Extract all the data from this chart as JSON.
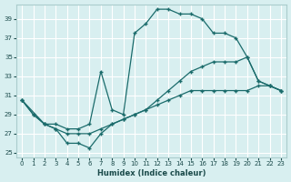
{
  "xlabel": "Humidex (Indice chaleur)",
  "bg_color": "#d8eff0",
  "grid_color": "#c8e4e6",
  "line_color": "#1a6b6b",
  "xlim": [
    -0.5,
    23.5
  ],
  "ylim": [
    24.5,
    40.5
  ],
  "yticks": [
    25,
    27,
    29,
    31,
    33,
    35,
    37,
    39
  ],
  "xticks": [
    0,
    1,
    2,
    3,
    4,
    5,
    6,
    7,
    8,
    9,
    10,
    11,
    12,
    13,
    14,
    15,
    16,
    17,
    18,
    19,
    20,
    21,
    22,
    23
  ],
  "series": [
    {
      "x": [
        0,
        1,
        2,
        3,
        4,
        5,
        6,
        7,
        8,
        9,
        10,
        11,
        12,
        13,
        14,
        15,
        16,
        17,
        18,
        19,
        20,
        21,
        22,
        23
      ],
      "y": [
        30.5,
        29.0,
        28.0,
        28.0,
        27.5,
        27.5,
        28.0,
        33.5,
        29.5,
        29.0,
        37.5,
        38.5,
        40.0,
        40.0,
        39.5,
        39.5,
        39.0,
        37.5,
        37.5,
        37.0,
        35.0,
        32.5,
        32.0,
        31.5
      ]
    },
    {
      "x": [
        0,
        2,
        3,
        4,
        5,
        6,
        7,
        8,
        9,
        10,
        11,
        12,
        13,
        14,
        15,
        16,
        17,
        18,
        19,
        20,
        21,
        22,
        23
      ],
      "y": [
        30.5,
        28.0,
        27.5,
        27.0,
        27.0,
        27.0,
        27.5,
        28.0,
        28.5,
        29.0,
        29.5,
        30.5,
        31.5,
        32.5,
        33.5,
        34.0,
        34.5,
        34.5,
        34.5,
        35.0,
        32.5,
        32.0,
        31.5
      ]
    },
    {
      "x": [
        0,
        1,
        2,
        3,
        4,
        5,
        6,
        7,
        8,
        9,
        10,
        11,
        12,
        13,
        14,
        15,
        16,
        17,
        18,
        19,
        20,
        21,
        22,
        23
      ],
      "y": [
        30.5,
        29.0,
        28.0,
        27.5,
        26.0,
        26.0,
        25.5,
        27.0,
        28.0,
        28.5,
        29.0,
        29.5,
        30.0,
        30.5,
        31.0,
        31.5,
        31.5,
        31.5,
        31.5,
        31.5,
        31.5,
        32.0,
        32.0,
        31.5
      ]
    }
  ]
}
